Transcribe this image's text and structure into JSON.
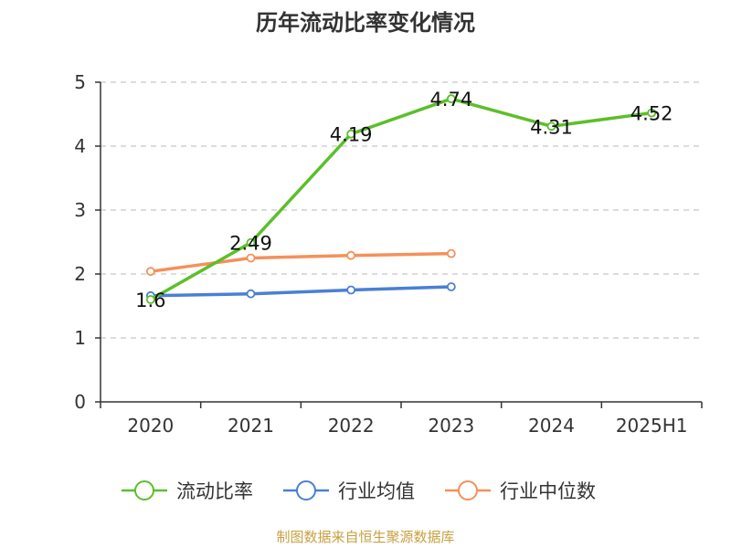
{
  "chart_data": {
    "type": "line",
    "title": "历年流动比率变化情况",
    "categories": [
      "2020",
      "2021",
      "2022",
      "2023",
      "2024",
      "2025H1"
    ],
    "ylim": [
      0,
      5
    ],
    "yticks": [
      "0",
      "1",
      "2",
      "3",
      "4",
      "5"
    ],
    "grid": "horizontal-dashed",
    "legend_position": "bottom",
    "series": [
      {
        "name": "流动比率",
        "color": "#5cbf2a",
        "values": [
          1.6,
          2.49,
          4.19,
          4.74,
          4.31,
          4.52
        ],
        "labels": [
          "1.6",
          "2.49",
          "4.19",
          "4.74",
          "4.31",
          "4.52"
        ]
      },
      {
        "name": "行业均值",
        "color": "#4a7fd4",
        "values": [
          1.66,
          1.69,
          1.75,
          1.8,
          null,
          null
        ]
      },
      {
        "name": "行业中位数",
        "color": "#f5905a",
        "values": [
          2.04,
          2.25,
          2.29,
          2.32,
          null,
          null
        ]
      }
    ]
  },
  "source": "制图数据来自恒生聚源数据库"
}
